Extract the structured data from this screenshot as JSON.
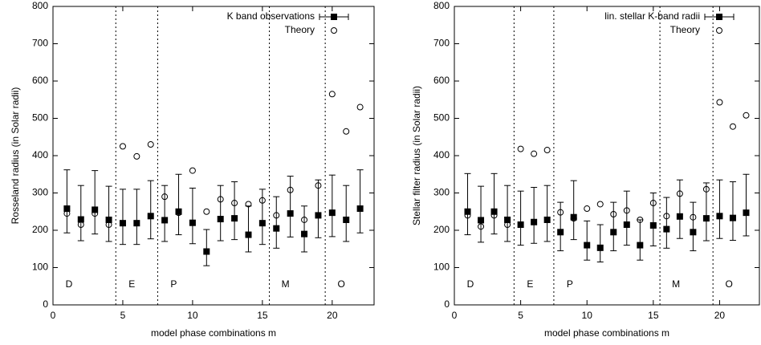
{
  "chart_data": [
    {
      "type": "errorbar-scatter",
      "x_label": "model phase combinations m",
      "y_label": "Rosseland radius (in Solar radii)",
      "xlim": [
        0,
        23
      ],
      "ylim": [
        0,
        800
      ],
      "xticks": [
        0,
        5,
        10,
        15,
        20
      ],
      "yticks": [
        0,
        100,
        200,
        300,
        400,
        500,
        600,
        700,
        800
      ],
      "separators": [
        4.5,
        7.5,
        15.5,
        19.5
      ],
      "regions": [
        "D",
        "E",
        "P",
        "M",
        "O"
      ],
      "series": [
        {
          "name": "K band observations",
          "color": "#000000",
          "marker": "square",
          "x": [
            1,
            2,
            3,
            4,
            5,
            6,
            7,
            8,
            9,
            10,
            11,
            12,
            13,
            14,
            15,
            16,
            17,
            18,
            19,
            20,
            21,
            22
          ],
          "values": [
            258,
            229,
            255,
            228,
            219,
            219,
            238,
            227,
            250,
            220,
            143,
            230,
            232,
            188,
            219,
            205,
            245,
            190,
            240,
            247,
            228,
            258
          ],
          "lower": [
            193,
            172,
            190,
            170,
            162,
            162,
            177,
            170,
            188,
            164,
            105,
            172,
            175,
            142,
            162,
            152,
            182,
            142,
            180,
            183,
            170,
            193
          ],
          "upper": [
            362,
            320,
            360,
            318,
            310,
            310,
            333,
            320,
            350,
            313,
            202,
            320,
            330,
            265,
            310,
            290,
            345,
            265,
            335,
            348,
            320,
            362
          ]
        },
        {
          "name": "Theory",
          "color": "#000000",
          "marker": "circle",
          "x": [
            1,
            2,
            3,
            4,
            5,
            6,
            7,
            8,
            9,
            10,
            11,
            12,
            13,
            14,
            15,
            16,
            17,
            18,
            19,
            20,
            21,
            22
          ],
          "values": [
            245,
            215,
            245,
            215,
            425,
            398,
            430,
            290,
            247,
            360,
            250,
            283,
            273,
            270,
            280,
            240,
            308,
            228,
            320,
            565,
            465,
            530
          ]
        }
      ]
    },
    {
      "type": "errorbar-scatter",
      "x_label": "model phase combinations m",
      "y_label": "Stellar filter radius (in Solar radii)",
      "xlim": [
        0,
        23
      ],
      "ylim": [
        0,
        800
      ],
      "xticks": [
        0,
        5,
        10,
        15,
        20
      ],
      "yticks": [
        0,
        100,
        200,
        300,
        400,
        500,
        600,
        700,
        800
      ],
      "separators": [
        4.5,
        7.5,
        15.5,
        19.5
      ],
      "regions": [
        "D",
        "E",
        "P",
        "M",
        "O"
      ],
      "series": [
        {
          "name": "lin. stellar K-band radii",
          "color": "#000000",
          "marker": "square",
          "x": [
            1,
            2,
            3,
            4,
            5,
            6,
            7,
            8,
            9,
            10,
            11,
            12,
            13,
            14,
            15,
            16,
            17,
            18,
            19,
            20,
            21,
            22
          ],
          "values": [
            250,
            227,
            250,
            228,
            215,
            222,
            228,
            195,
            235,
            160,
            153,
            195,
            215,
            160,
            213,
            203,
            237,
            195,
            232,
            238,
            233,
            247
          ],
          "lower": [
            188,
            168,
            190,
            170,
            160,
            165,
            170,
            145,
            175,
            120,
            115,
            145,
            160,
            120,
            158,
            152,
            178,
            145,
            172,
            178,
            173,
            185
          ],
          "upper": [
            352,
            318,
            352,
            320,
            305,
            315,
            320,
            275,
            333,
            225,
            215,
            275,
            305,
            228,
            300,
            288,
            335,
            275,
            327,
            335,
            330,
            350
          ]
        },
        {
          "name": "Theory",
          "color": "#000000",
          "marker": "circle",
          "x": [
            1,
            2,
            3,
            4,
            5,
            6,
            7,
            8,
            9,
            10,
            11,
            12,
            13,
            14,
            15,
            16,
            17,
            18,
            19,
            20,
            21,
            22
          ],
          "values": [
            240,
            210,
            240,
            215,
            418,
            405,
            415,
            248,
            232,
            258,
            270,
            243,
            253,
            228,
            273,
            238,
            298,
            235,
            310,
            543,
            478,
            508
          ]
        }
      ]
    }
  ]
}
